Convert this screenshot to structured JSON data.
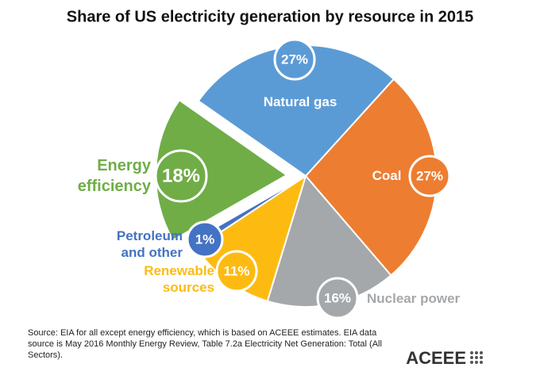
{
  "chart_data": {
    "type": "pie",
    "title": "Share of US electricity generation by resource in 2015",
    "categories": [
      "Natural gas",
      "Coal",
      "Nuclear power",
      "Renewable sources",
      "Petroleum and other",
      "Energy efficiency"
    ],
    "values": [
      27,
      27,
      16,
      11,
      1,
      18
    ],
    "value_labels": [
      "27%",
      "27%",
      "16%",
      "11%",
      "1%",
      "18%"
    ],
    "colors": [
      "#5b9bd5",
      "#ed7d31",
      "#a5a8ab",
      "#fdbb12",
      "#4472c4",
      "#70ad47"
    ],
    "source": "Source: EIA for all except energy efficiency, which is based on ACEEE estimates. EIA data source is May 2016 Monthly Energy Review, Table 7.2a Electricity Net Generation: Total (All Sectors).",
    "logo": "ACEEE"
  }
}
